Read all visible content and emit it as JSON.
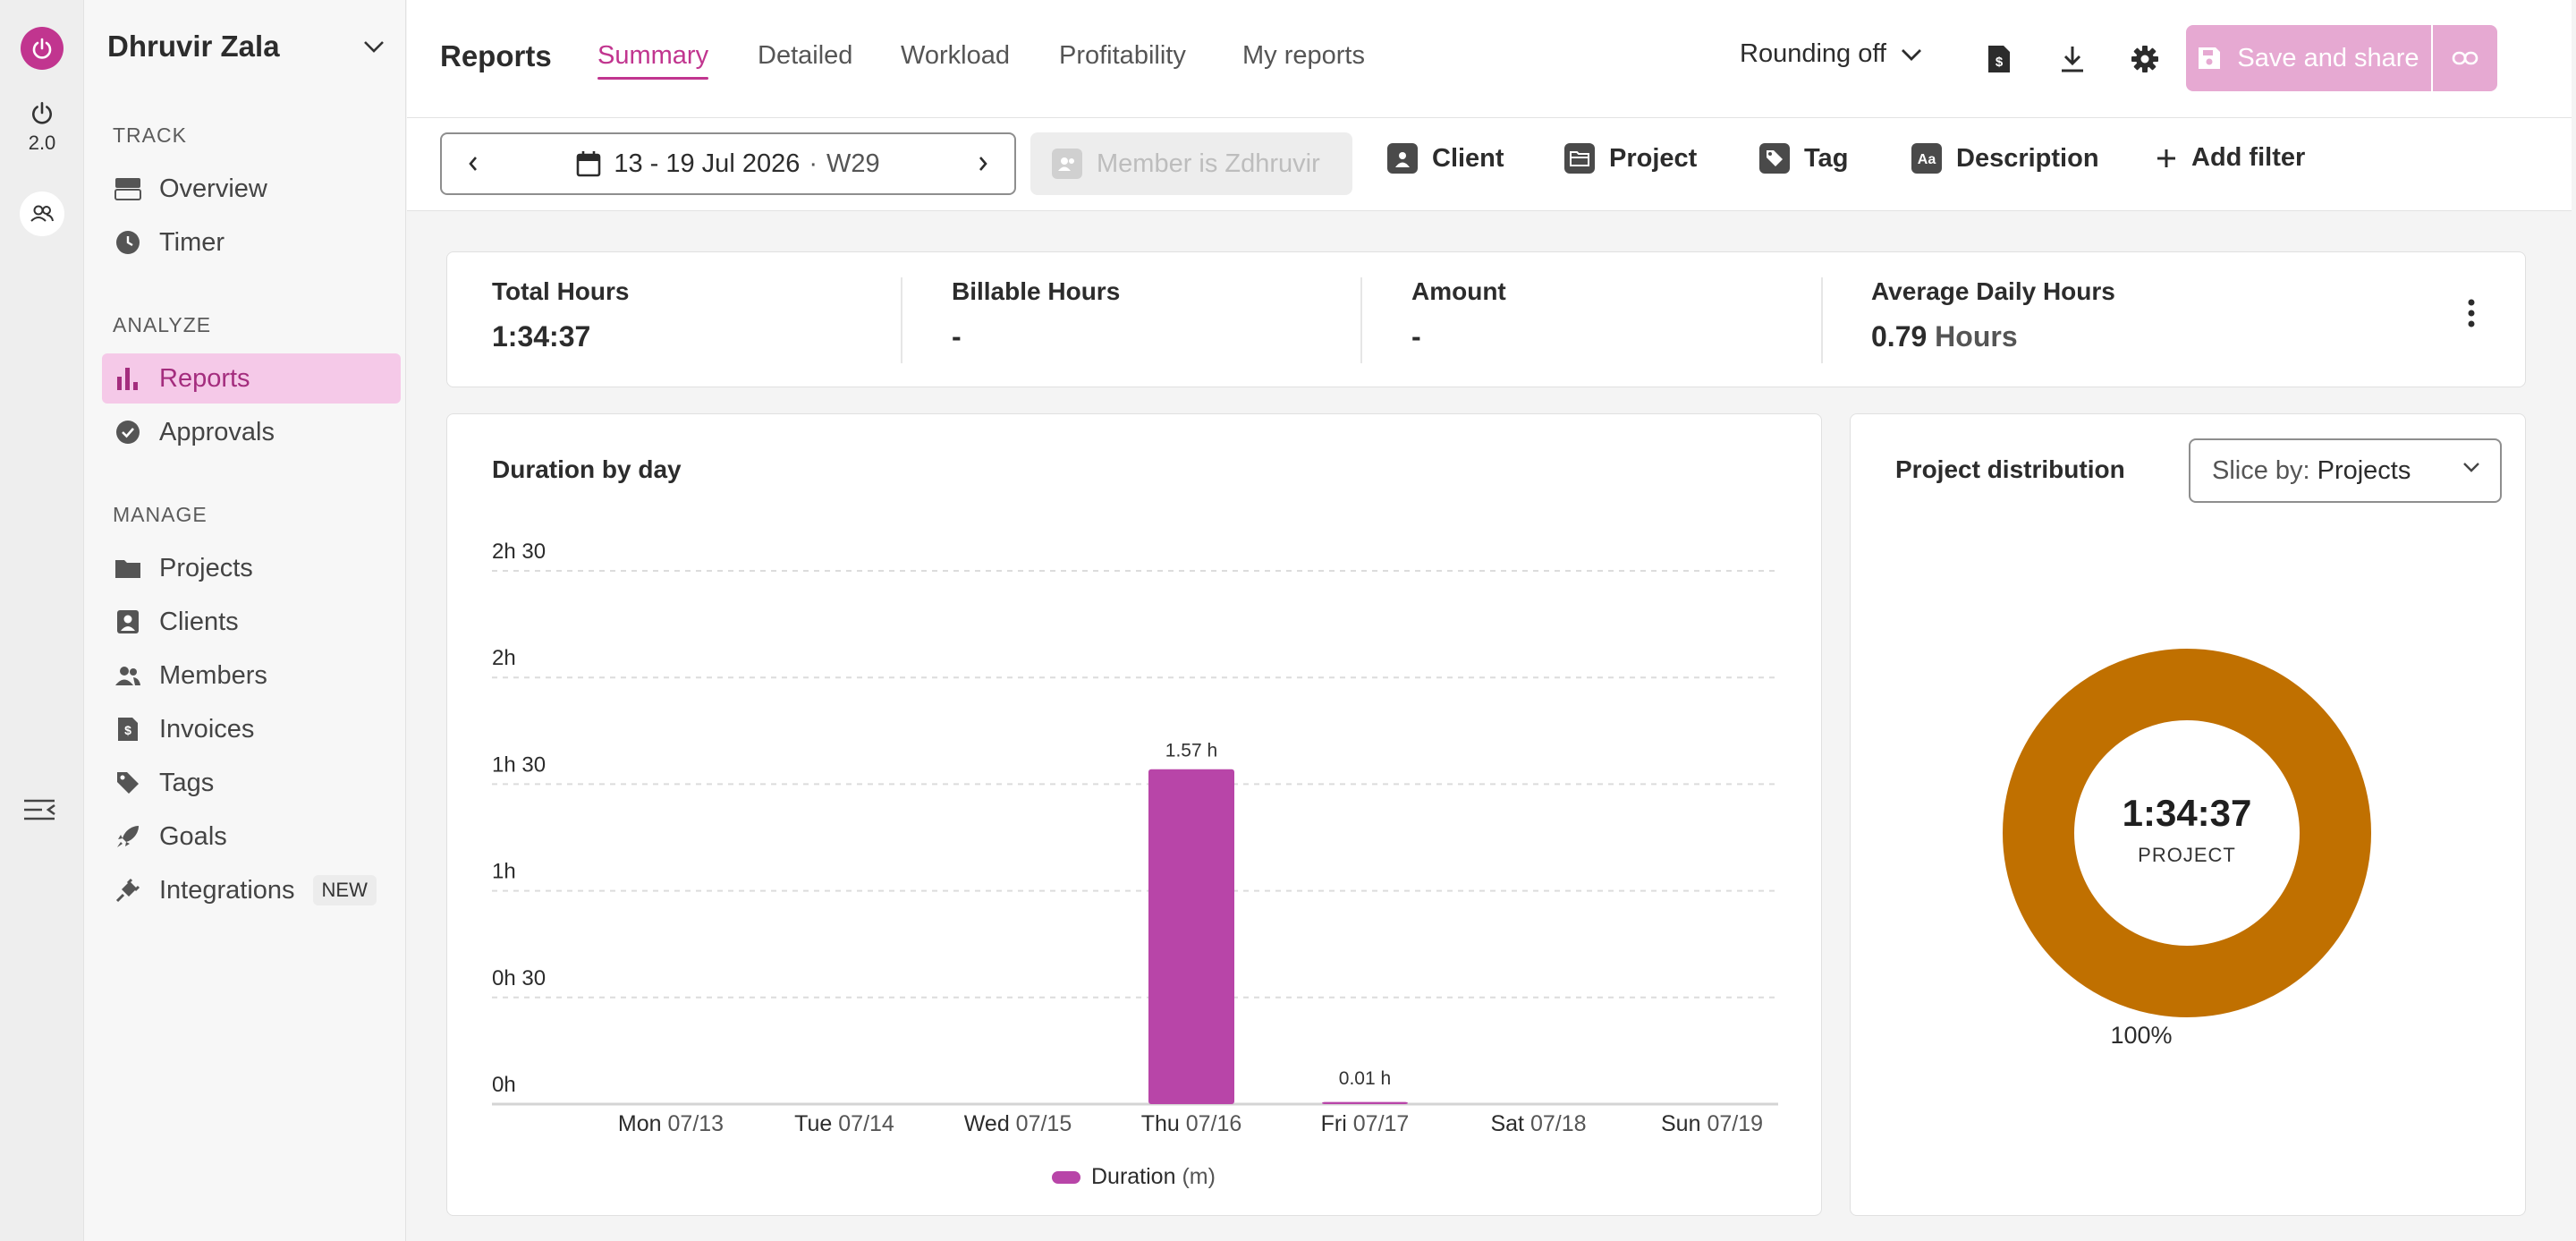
{
  "rail": {
    "version": "2.0"
  },
  "workspace": {
    "name": "Dhruvir Zala"
  },
  "sidebar": {
    "sections": [
      {
        "title": "TRACK",
        "items": [
          {
            "label": "Overview"
          },
          {
            "label": "Timer"
          }
        ]
      },
      {
        "title": "ANALYZE",
        "items": [
          {
            "label": "Reports",
            "active": true
          },
          {
            "label": "Approvals"
          }
        ]
      },
      {
        "title": "MANAGE",
        "items": [
          {
            "label": "Projects"
          },
          {
            "label": "Clients"
          },
          {
            "label": "Members"
          },
          {
            "label": "Invoices"
          },
          {
            "label": "Tags"
          },
          {
            "label": "Goals"
          },
          {
            "label": "Integrations",
            "badge": "NEW"
          }
        ]
      }
    ]
  },
  "header": {
    "title": "Reports",
    "tabs": [
      {
        "label": "Summary",
        "active": true
      },
      {
        "label": "Detailed"
      },
      {
        "label": "Workload"
      },
      {
        "label": "Profitability"
      },
      {
        "label": "My reports"
      }
    ],
    "rounding": "Rounding off",
    "save_label": "Save and share"
  },
  "filters": {
    "date_range": "13 - 19 Jul 2026",
    "week": "W29",
    "member": "Member is Zdhruvir",
    "items": [
      {
        "label": "Client"
      },
      {
        "label": "Project"
      },
      {
        "label": "Tag"
      },
      {
        "label": "Description"
      },
      {
        "label": "Add filter"
      }
    ]
  },
  "stats": [
    {
      "label": "Total Hours",
      "value": "1:34:37",
      "unit": ""
    },
    {
      "label": "Billable Hours",
      "value": "-",
      "unit": ""
    },
    {
      "label": "Amount",
      "value": "-",
      "unit": ""
    },
    {
      "label": "Average Daily Hours",
      "value": "0.79",
      "unit": "Hours"
    }
  ],
  "bar_card": {
    "title": "Duration by day"
  },
  "pie_card": {
    "title": "Project distribution",
    "slice_label": "Slice by:",
    "slice_value": "Projects"
  },
  "colors": {
    "accent": "#c1358f",
    "bar": "#b845a8",
    "project": "#c07000"
  },
  "chart_data": [
    {
      "type": "bar",
      "title": "Duration by day",
      "categories": [
        {
          "day": "Mon",
          "date": "07/13"
        },
        {
          "day": "Tue",
          "date": "07/14"
        },
        {
          "day": "Wed",
          "date": "07/15"
        },
        {
          "day": "Thu",
          "date": "07/16"
        },
        {
          "day": "Fri",
          "date": "07/17"
        },
        {
          "day": "Sat",
          "date": "07/18"
        },
        {
          "day": "Sun",
          "date": "07/19"
        }
      ],
      "values_hours": [
        0,
        0,
        0,
        1.57,
        0.01,
        0,
        0
      ],
      "data_labels": [
        "",
        "",
        "",
        "1.57 h",
        "0.01 h",
        "",
        ""
      ],
      "y_ticks": [
        "0h",
        "0h 30",
        "1h",
        "1h 30",
        "2h",
        "2h 30"
      ],
      "ylim_hours": [
        0,
        2.5
      ],
      "legend": {
        "label": "Duration",
        "unit": "(m)",
        "position": "bottom"
      },
      "grid": true
    },
    {
      "type": "pie",
      "title": "Project distribution",
      "center_value": "1:34:37",
      "center_label": "PROJECT",
      "slices": [
        {
          "label": "100%",
          "value": 100,
          "color": "#c07000"
        }
      ]
    }
  ]
}
